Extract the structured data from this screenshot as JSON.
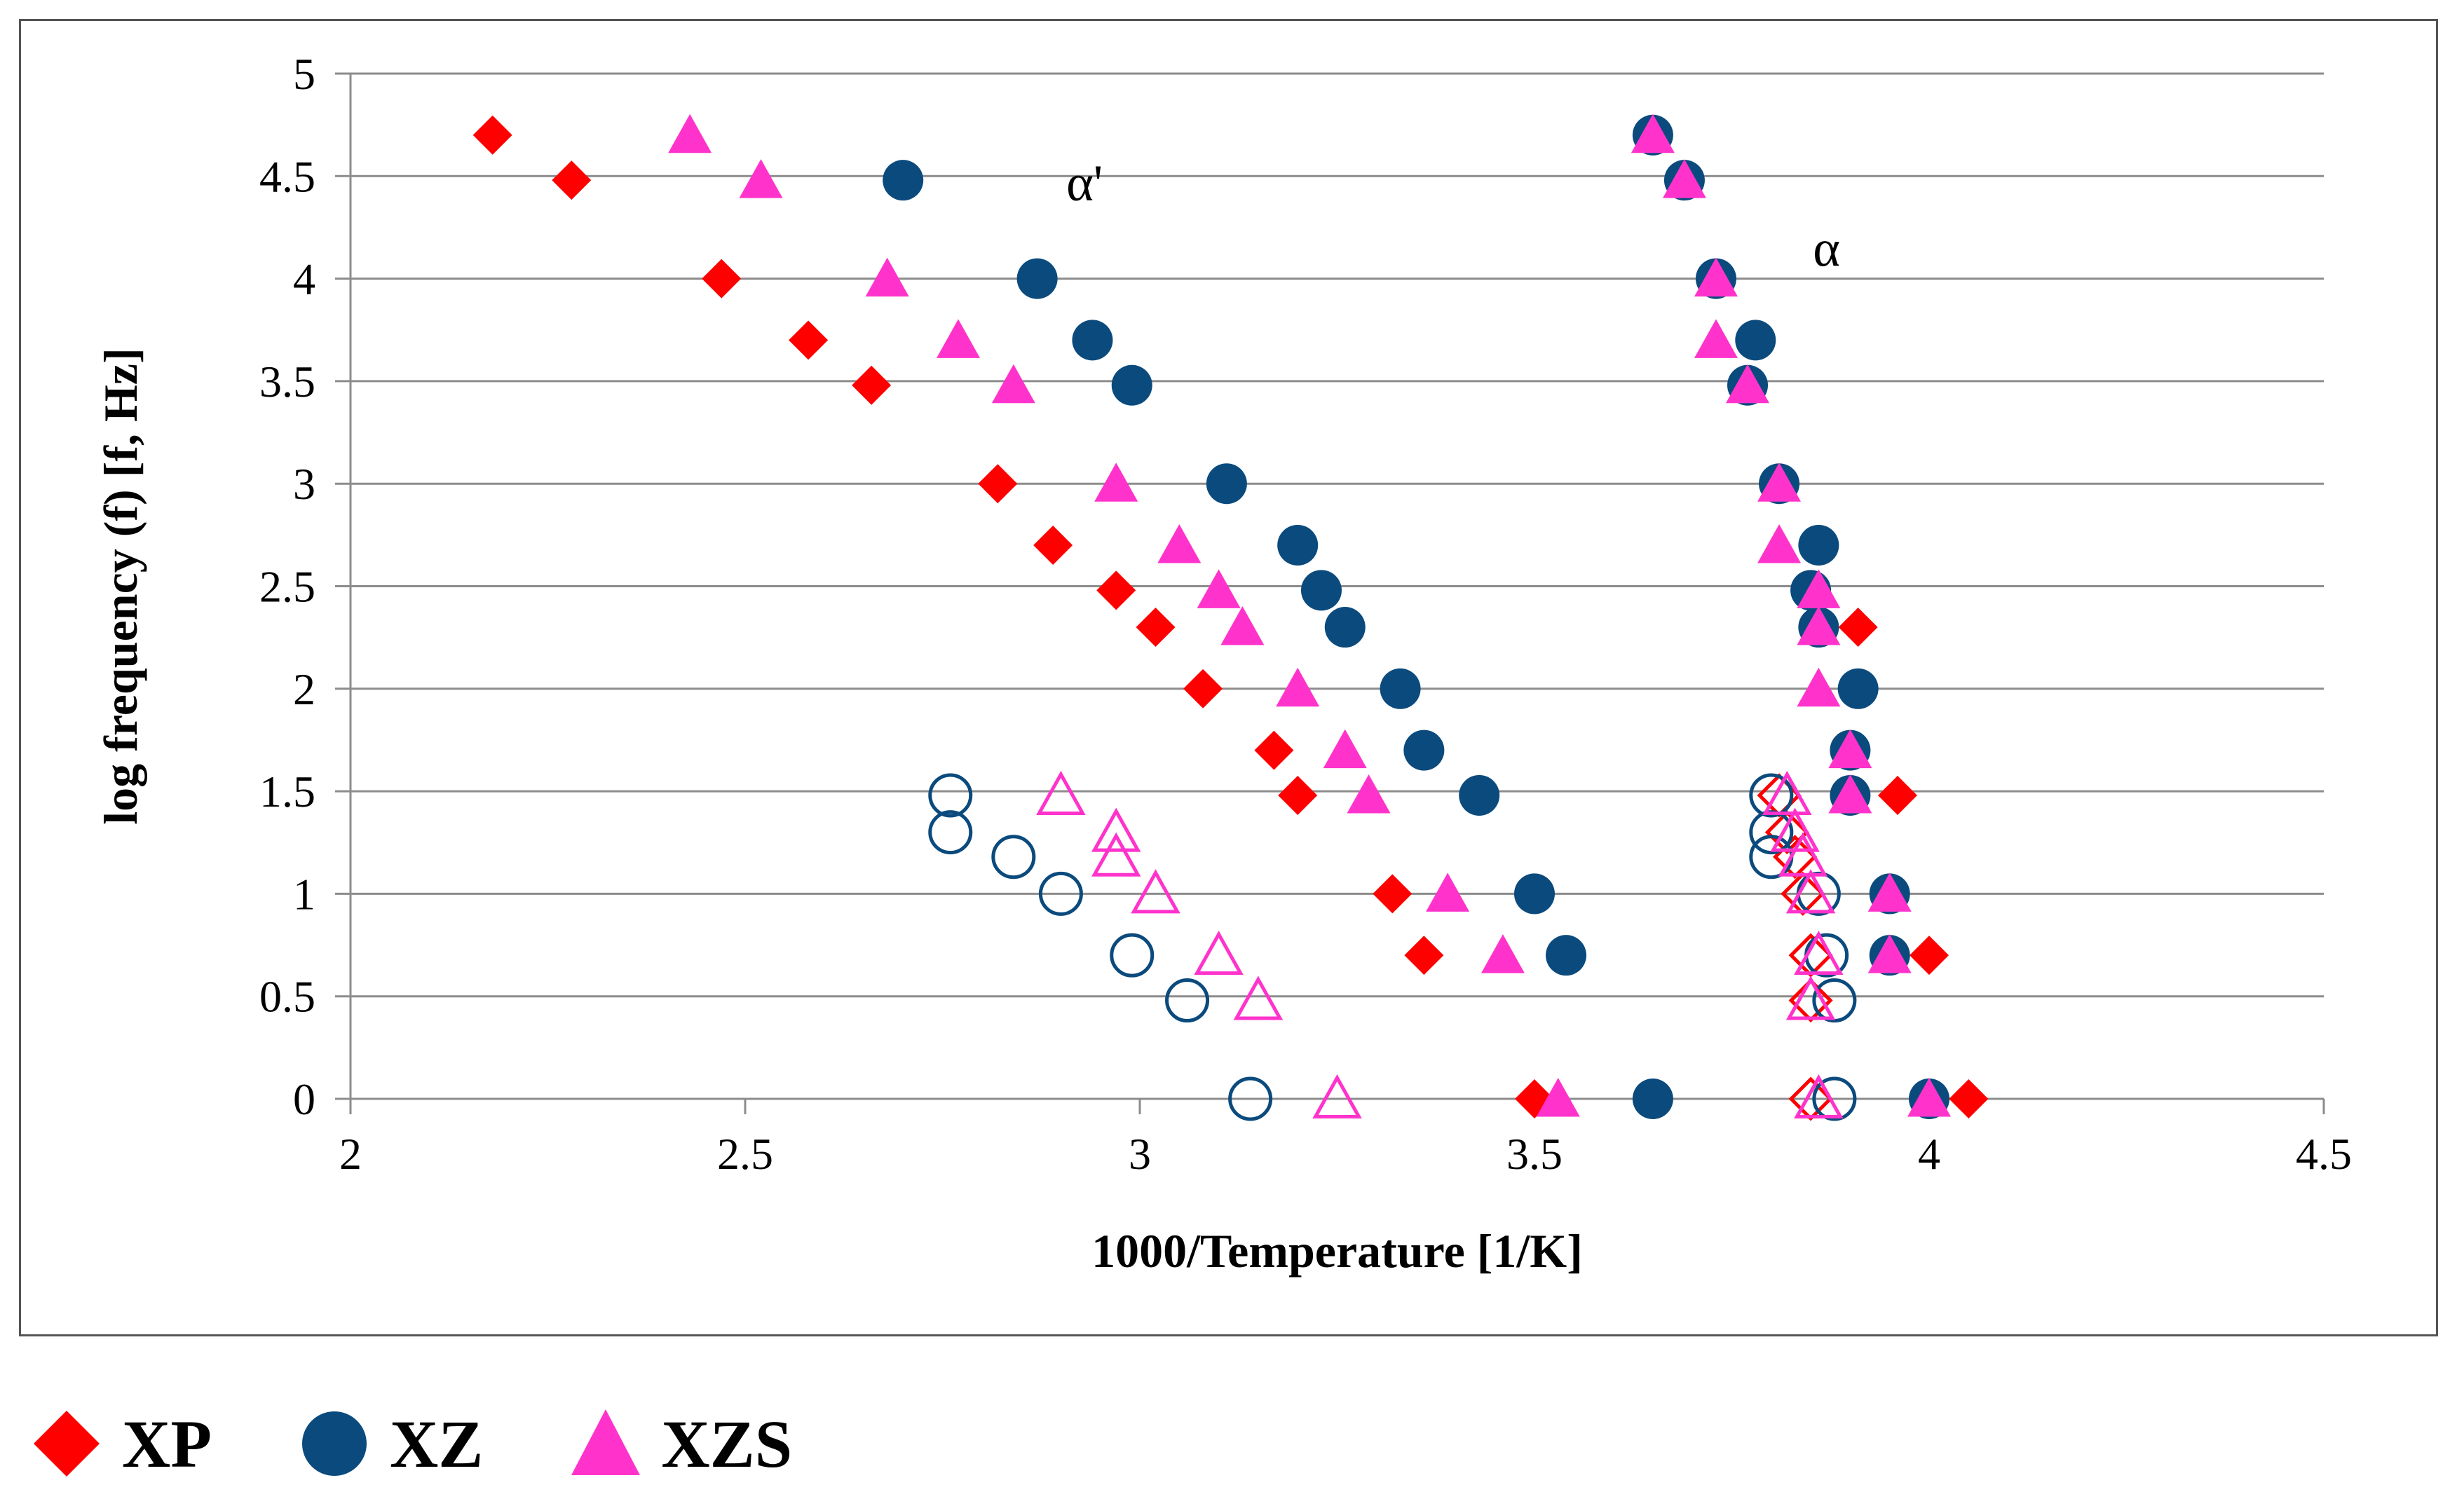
{
  "chart_data": {
    "type": "scatter",
    "title": "",
    "xlabel": "1000/Temperature [1/K]",
    "ylabel": "log frequency (f) [f, Hz]",
    "xlim": [
      2,
      4.5
    ],
    "ylim": [
      0,
      5
    ],
    "xticks": [
      "2",
      "2.5",
      "3",
      "3.5",
      "4",
      "4.5"
    ],
    "yticks": [
      "0",
      "0.5",
      "1",
      "1.5",
      "2",
      "2.5",
      "3",
      "3.5",
      "4",
      "4.5",
      "5"
    ],
    "grid": "horizontal",
    "legend_position": "bottom-left",
    "annotations": [
      {
        "text": "α'",
        "x": 2.93,
        "y": 4.47
      },
      {
        "text": "α",
        "x": 3.87,
        "y": 4.15
      }
    ],
    "series": [
      {
        "name": "XP",
        "marker": "diamond",
        "color": "#ff0000",
        "filled": true,
        "in_legend": true,
        "points": [
          [
            2.18,
            4.7
          ],
          [
            2.28,
            4.48
          ],
          [
            2.47,
            4.0
          ],
          [
            2.58,
            3.7
          ],
          [
            2.66,
            3.48
          ],
          [
            2.82,
            3.0
          ],
          [
            2.89,
            2.7
          ],
          [
            2.97,
            2.48
          ],
          [
            3.02,
            2.3
          ],
          [
            3.08,
            2.0
          ],
          [
            3.17,
            1.7
          ],
          [
            3.2,
            1.48
          ],
          [
            3.32,
            1.0
          ],
          [
            3.36,
            0.7
          ],
          [
            3.5,
            0.0
          ],
          [
            3.91,
            2.3
          ],
          [
            3.96,
            1.48
          ],
          [
            4.0,
            0.7
          ],
          [
            4.05,
            0.0
          ]
        ]
      },
      {
        "name": "XZ",
        "marker": "circle",
        "color": "#0b4a7d",
        "filled": true,
        "in_legend": true,
        "points": [
          [
            2.7,
            4.48
          ],
          [
            2.87,
            4.0
          ],
          [
            2.94,
            3.7
          ],
          [
            2.99,
            3.48
          ],
          [
            3.11,
            3.0
          ],
          [
            3.2,
            2.7
          ],
          [
            3.23,
            2.48
          ],
          [
            3.26,
            2.3
          ],
          [
            3.33,
            2.0
          ],
          [
            3.36,
            1.7
          ],
          [
            3.43,
            1.48
          ],
          [
            3.5,
            1.0
          ],
          [
            3.54,
            0.7
          ],
          [
            3.65,
            0.0
          ],
          [
            3.65,
            4.7
          ],
          [
            3.69,
            4.48
          ],
          [
            3.73,
            4.0
          ],
          [
            3.78,
            3.7
          ],
          [
            3.77,
            3.48
          ],
          [
            3.81,
            3.0
          ],
          [
            3.86,
            2.7
          ],
          [
            3.85,
            2.48
          ],
          [
            3.86,
            2.3
          ],
          [
            3.91,
            2.0
          ],
          [
            3.9,
            1.7
          ],
          [
            3.9,
            1.48
          ],
          [
            3.95,
            1.0
          ],
          [
            3.95,
            0.7
          ],
          [
            4.0,
            0.0
          ]
        ]
      },
      {
        "name": "XZS",
        "marker": "triangle",
        "color": "#ff33cc",
        "filled": true,
        "in_legend": true,
        "points": [
          [
            2.43,
            4.7
          ],
          [
            2.52,
            4.48
          ],
          [
            2.68,
            4.0
          ],
          [
            2.77,
            3.7
          ],
          [
            2.84,
            3.48
          ],
          [
            2.97,
            3.0
          ],
          [
            3.05,
            2.7
          ],
          [
            3.1,
            2.48
          ],
          [
            3.13,
            2.3
          ],
          [
            3.2,
            2.0
          ],
          [
            3.26,
            1.7
          ],
          [
            3.29,
            1.48
          ],
          [
            3.39,
            1.0
          ],
          [
            3.46,
            0.7
          ],
          [
            3.53,
            0.0
          ],
          [
            3.65,
            4.7
          ],
          [
            3.69,
            4.48
          ],
          [
            3.73,
            4.0
          ],
          [
            3.73,
            3.7
          ],
          [
            3.77,
            3.48
          ],
          [
            3.81,
            3.0
          ],
          [
            3.81,
            2.7
          ],
          [
            3.86,
            2.48
          ],
          [
            3.86,
            2.3
          ],
          [
            3.86,
            2.0
          ],
          [
            3.9,
            1.7
          ],
          [
            3.9,
            1.48
          ],
          [
            3.95,
            1.0
          ],
          [
            3.95,
            0.7
          ],
          [
            4.0,
            0.0
          ]
        ]
      },
      {
        "name": "XP (open)",
        "marker": "diamond",
        "color": "#ff0000",
        "filled": false,
        "in_legend": false,
        "points": [
          [
            3.81,
            1.48
          ],
          [
            3.82,
            1.3
          ],
          [
            3.83,
            1.18
          ],
          [
            3.84,
            1.0
          ],
          [
            3.85,
            0.7
          ],
          [
            3.85,
            0.48
          ],
          [
            3.85,
            0.0
          ]
        ]
      },
      {
        "name": "XZ (open)",
        "marker": "circle",
        "color": "#0b4a7d",
        "filled": false,
        "in_legend": false,
        "points": [
          [
            2.76,
            1.48
          ],
          [
            2.76,
            1.3
          ],
          [
            2.84,
            1.18
          ],
          [
            2.9,
            1.0
          ],
          [
            2.99,
            0.7
          ],
          [
            3.06,
            0.48
          ],
          [
            3.14,
            0.0
          ],
          [
            3.8,
            1.48
          ],
          [
            3.8,
            1.3
          ],
          [
            3.8,
            1.18
          ],
          [
            3.86,
            1.0
          ],
          [
            3.87,
            0.7
          ],
          [
            3.88,
            0.48
          ],
          [
            3.88,
            0.0
          ]
        ]
      },
      {
        "name": "XZS (open)",
        "marker": "triangle",
        "color": "#ff33cc",
        "filled": false,
        "in_legend": false,
        "points": [
          [
            2.9,
            1.48
          ],
          [
            2.97,
            1.3
          ],
          [
            2.97,
            1.18
          ],
          [
            3.02,
            1.0
          ],
          [
            3.1,
            0.7
          ],
          [
            3.15,
            0.48
          ],
          [
            3.25,
            0.0
          ],
          [
            3.82,
            1.48
          ],
          [
            3.83,
            1.3
          ],
          [
            3.84,
            1.18
          ],
          [
            3.85,
            1.0
          ],
          [
            3.86,
            0.7
          ],
          [
            3.85,
            0.48
          ],
          [
            3.86,
            0.0
          ]
        ]
      }
    ]
  },
  "legend": {
    "items": [
      {
        "label": "XP",
        "marker": "diamond",
        "color": "#ff0000"
      },
      {
        "label": "XZ",
        "marker": "circle",
        "color": "#0b4a7d"
      },
      {
        "label": "XZS",
        "marker": "triangle",
        "color": "#ff33cc"
      }
    ]
  }
}
